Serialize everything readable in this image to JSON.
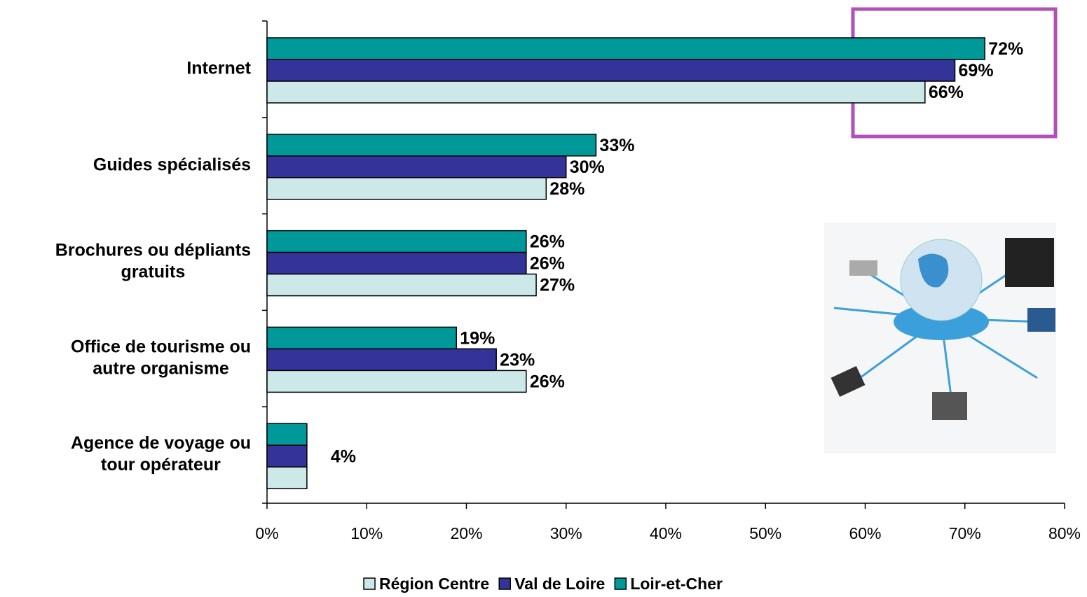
{
  "chart_data": {
    "type": "hbar",
    "categories": [
      [
        "Internet"
      ],
      [
        "Guides spécialisés"
      ],
      [
        "Brochures ou dépliants",
        "gratuits"
      ],
      [
        "Office de tourisme ou",
        "autre organisme"
      ],
      [
        "Agence de voyage ou",
        "tour opérateur"
      ]
    ],
    "series": [
      {
        "name": "Loir-et-Cher",
        "color": "#009999",
        "values": [
          72,
          33,
          26,
          19,
          4
        ],
        "value_labels": [
          "72%",
          "33%",
          "26%",
          "19%",
          null
        ]
      },
      {
        "name": "Val de Loire",
        "color": "#333399",
        "values": [
          69,
          30,
          26,
          23,
          4
        ],
        "value_labels": [
          "69%",
          "30%",
          "26%",
          "23%",
          "4%"
        ]
      },
      {
        "name": "Région Centre",
        "color": "#cce8e8",
        "values": [
          66,
          28,
          27,
          26,
          4
        ],
        "value_labels": [
          "66%",
          "28%",
          "27%",
          "26%",
          null
        ]
      }
    ],
    "legend_order": [
      2,
      1,
      0
    ],
    "xlim": [
      0,
      80
    ],
    "xticks": [
      {
        "value": 0,
        "label": "0%"
      },
      {
        "value": 10,
        "label": "10%"
      },
      {
        "value": 20,
        "label": "20%"
      },
      {
        "value": 30,
        "label": "30%"
      },
      {
        "value": 40,
        "label": "40%"
      },
      {
        "value": 50,
        "label": "50%"
      },
      {
        "value": 60,
        "label": "60%"
      },
      {
        "value": 70,
        "label": "70%"
      },
      {
        "value": 80,
        "label": "80%"
      }
    ],
    "grid": false,
    "legend": "bottom"
  }
}
